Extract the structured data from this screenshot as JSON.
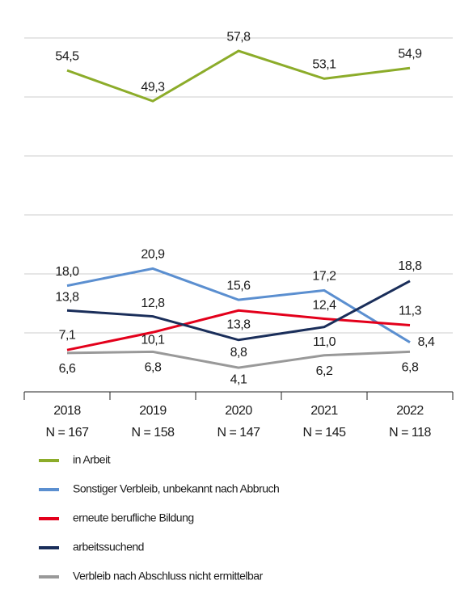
{
  "chart_data": {
    "type": "line",
    "categories": [
      "2018",
      "2019",
      "2020",
      "2021",
      "2022"
    ],
    "n_labels": [
      "N = 167",
      "N = 158",
      "N = 147",
      "N = 145",
      "N = 118"
    ],
    "ylim": [
      0,
      60
    ],
    "yticks": [
      0,
      10,
      20,
      30,
      40,
      50,
      60
    ],
    "grid": true,
    "legend": "bottom",
    "series": [
      {
        "name": "in Arbeit",
        "color": "#8cac2a",
        "values": [
          54.5,
          49.3,
          57.8,
          53.1,
          54.9
        ],
        "value_labels": [
          "54,5",
          "49,3",
          "57,8",
          "53,1",
          "54,9"
        ]
      },
      {
        "name": "Sonstiger Verbleib, unbekannt nach Abbruch",
        "color": "#5b8fd0",
        "values": [
          18.0,
          20.9,
          15.6,
          17.2,
          8.4
        ],
        "value_labels": [
          "18,0",
          "20,9",
          "15,6",
          "17,2",
          "8,4"
        ]
      },
      {
        "name": "erneute berufliche Bildung",
        "color": "#e3001b",
        "values": [
          7.1,
          10.1,
          13.8,
          12.4,
          11.3
        ],
        "value_labels": [
          "7,1",
          "10,1",
          "13,8",
          "12,4",
          "11,3"
        ]
      },
      {
        "name": "arbeitssuchend",
        "color": "#1a2e5a",
        "values": [
          13.8,
          12.8,
          8.8,
          11.0,
          18.8
        ],
        "value_labels": [
          "13,8",
          "12,8",
          "8,8",
          "11,0",
          "18,8"
        ]
      },
      {
        "name": "Verbleib nach Abschluss nicht ermittelbar",
        "color": "#999999",
        "values": [
          6.6,
          6.8,
          4.1,
          6.2,
          6.8
        ],
        "value_labels": [
          "6,6",
          "6,8",
          "4,1",
          "6,2",
          "6,8"
        ]
      }
    ]
  }
}
